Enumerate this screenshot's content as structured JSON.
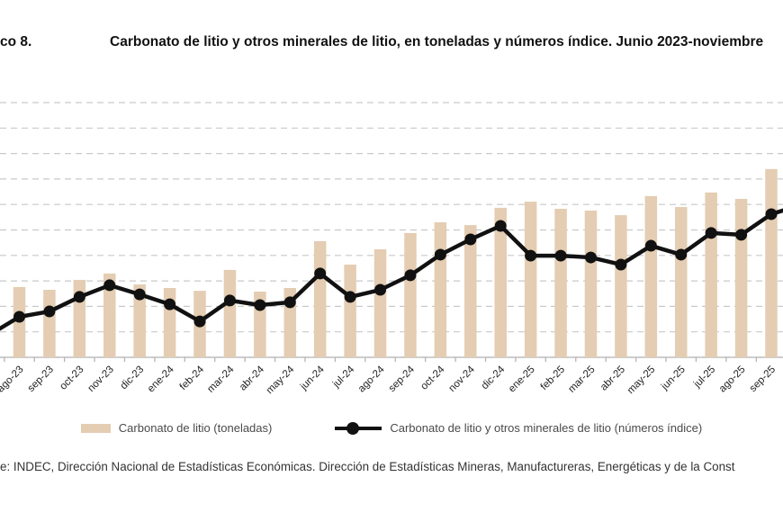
{
  "header": {
    "graphic_label_fragment": "co 8."
  },
  "chart_data": {
    "type": "combo-bar-line",
    "title": "Carbonato de litio y otros minerales de litio, en toneladas y números índice. Junio 2023-noviembre",
    "categories": [
      "ago-23",
      "sep-23",
      "oct-23",
      "nov-23",
      "dic-23",
      "ene-24",
      "feb-24",
      "mar-24",
      "abr-24",
      "may-24",
      "jun-24",
      "jul-24",
      "ago-24",
      "sep-24",
      "oct-24",
      "nov-24",
      "dic-24",
      "ene-25",
      "feb-25",
      "mar-25",
      "abr-25",
      "may-25",
      "jun-25",
      "jul-25",
      "ago-25",
      "sep-25"
    ],
    "series": [
      {
        "name": "Carbonato de litio (toneladas)",
        "type": "bar",
        "color": "#e4cdb2",
        "values": [
          27.6,
          26.5,
          30.4,
          32.9,
          28.6,
          27.2,
          26.1,
          34.3,
          25.8,
          27.2,
          45.6,
          36.4,
          42.4,
          48.8,
          53.0,
          51.9,
          58.7,
          61.1,
          58.3,
          57.6,
          55.8,
          63.3,
          59.0,
          64.7,
          62.2,
          73.9
        ]
      },
      {
        "name": "Carbonato de litio y otros minerales de litio (números índice)",
        "type": "line",
        "color": "#111111",
        "values": [
          15.9,
          18.0,
          23.7,
          28.3,
          24.7,
          20.8,
          14.1,
          22.3,
          20.5,
          21.6,
          32.9,
          23.7,
          26.5,
          32.2,
          40.3,
          46.3,
          51.6,
          39.9,
          39.9,
          39.2,
          36.4,
          43.8,
          40.3,
          48.8,
          48.1,
          56.2
        ],
        "edge_entry_value": 8.3,
        "edge_exit_value": 59.0
      }
    ],
    "value_scale": "percent of plot height (numeric y-axis labels are cropped out of the visible image)",
    "ylim": [
      0,
      100
    ],
    "xlabel": "",
    "ylabel": "",
    "gridlines": {
      "count": 11,
      "style": "dashed",
      "color": "#c9c9c9"
    },
    "legend_position": "bottom",
    "x_labels_rotation_deg": 45
  },
  "footer": {
    "source_text": "e: INDEC, Dirección Nacional de Estadísticas Económicas. Dirección de Estadísticas Mineras, Manufactureras, Energéticas y de la Const"
  }
}
